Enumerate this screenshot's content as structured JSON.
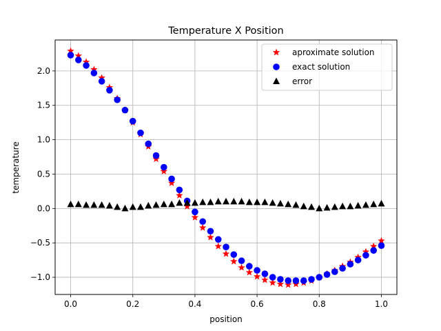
{
  "chart_data": {
    "type": "scatter",
    "title": "Temperature X Position",
    "xlabel": "position",
    "ylabel": "temperature",
    "xlim": [
      -0.05,
      1.05
    ],
    "ylim": [
      -1.25,
      2.45
    ],
    "xticks": [
      0.0,
      0.2,
      0.4,
      0.6,
      0.8,
      1.0
    ],
    "xtick_labels": [
      "0.0",
      "0.2",
      "0.4",
      "0.6",
      "0.8",
      "1.0"
    ],
    "yticks": [
      -1.0,
      -0.5,
      0.0,
      0.5,
      1.0,
      1.5,
      2.0
    ],
    "ytick_labels": [
      "−1.0",
      "−0.5",
      "0.0",
      "0.5",
      "1.0",
      "1.5",
      "2.0"
    ],
    "grid": true,
    "legend_position": "top-right",
    "x": [
      0.0,
      0.025,
      0.05,
      0.075,
      0.1,
      0.125,
      0.15,
      0.175,
      0.2,
      0.225,
      0.25,
      0.275,
      0.3,
      0.325,
      0.35,
      0.375,
      0.4,
      0.425,
      0.45,
      0.475,
      0.5,
      0.525,
      0.55,
      0.575,
      0.6,
      0.625,
      0.65,
      0.675,
      0.7,
      0.725,
      0.75,
      0.775,
      0.8,
      0.825,
      0.85,
      0.875,
      0.9,
      0.925,
      0.95,
      0.975,
      1.0
    ],
    "series": [
      {
        "name": "aproximate solution",
        "marker": "star",
        "color": "#ff0000",
        "values": [
          2.29,
          2.22,
          2.13,
          2.02,
          1.9,
          1.76,
          1.6,
          1.43,
          1.25,
          1.08,
          0.9,
          0.72,
          0.54,
          0.37,
          0.19,
          0.03,
          -0.13,
          -0.28,
          -0.42,
          -0.55,
          -0.66,
          -0.77,
          -0.86,
          -0.93,
          -0.99,
          -1.04,
          -1.08,
          -1.1,
          -1.11,
          -1.1,
          -1.08,
          -1.05,
          -1.0,
          -0.95,
          -0.9,
          -0.84,
          -0.78,
          -0.71,
          -0.63,
          -0.55,
          -0.47
        ]
      },
      {
        "name": "exact solution",
        "marker": "circle",
        "color": "#0000ff",
        "values": [
          2.23,
          2.16,
          2.08,
          1.97,
          1.85,
          1.72,
          1.58,
          1.43,
          1.27,
          1.1,
          0.94,
          0.77,
          0.6,
          0.43,
          0.27,
          0.11,
          -0.05,
          -0.19,
          -0.33,
          -0.45,
          -0.56,
          -0.67,
          -0.76,
          -0.84,
          -0.9,
          -0.95,
          -1.0,
          -1.03,
          -1.05,
          -1.05,
          -1.05,
          -1.03,
          -1.0,
          -0.96,
          -0.92,
          -0.87,
          -0.81,
          -0.75,
          -0.68,
          -0.61,
          -0.54
        ]
      },
      {
        "name": "error",
        "marker": "triangle",
        "color": "#000000",
        "values": [
          0.06,
          0.06,
          0.05,
          0.05,
          0.05,
          0.04,
          0.02,
          0.0,
          0.02,
          0.02,
          0.04,
          0.05,
          0.06,
          0.06,
          0.08,
          0.08,
          0.08,
          0.09,
          0.09,
          0.1,
          0.1,
          0.1,
          0.1,
          0.09,
          0.09,
          0.09,
          0.08,
          0.07,
          0.06,
          0.05,
          0.03,
          0.02,
          0.0,
          0.01,
          0.02,
          0.03,
          0.03,
          0.04,
          0.05,
          0.06,
          0.07
        ]
      }
    ]
  }
}
